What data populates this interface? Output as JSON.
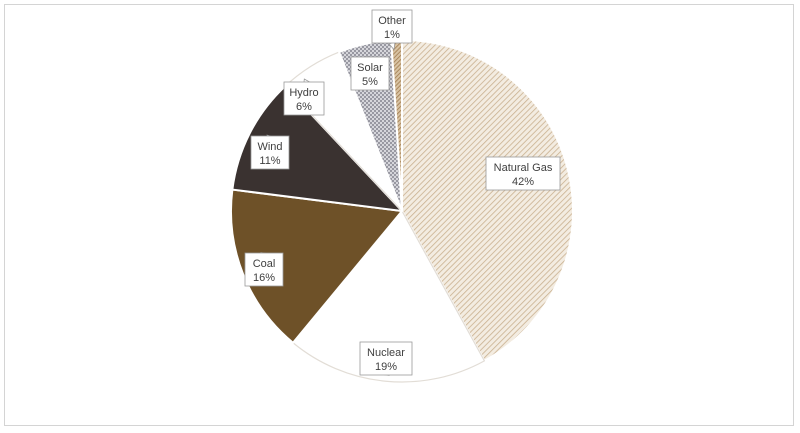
{
  "chart_data": {
    "type": "pie",
    "title": "",
    "slices": [
      {
        "label": "Natural Gas",
        "value": 42,
        "value_label": "42%",
        "color": "#c9b08f",
        "pattern": "diagonal-hatch"
      },
      {
        "label": "Nuclear",
        "value": 19,
        "value_label": "19%",
        "color": "#ffffff",
        "pattern": "solid"
      },
      {
        "label": "Coal",
        "value": 16,
        "value_label": "16%",
        "color": "#6e5128",
        "pattern": "solid"
      },
      {
        "label": "Wind",
        "value": 11,
        "value_label": "11%",
        "color": "#3a3230",
        "pattern": "solid"
      },
      {
        "label": "Hydro",
        "value": 6,
        "value_label": "6%",
        "color": "#ffffff",
        "pattern": "solid"
      },
      {
        "label": "Solar",
        "value": 5,
        "value_label": "5%",
        "color": "#8c8c96",
        "pattern": "crosshatch"
      },
      {
        "label": "Other",
        "value": 1,
        "value_label": "1%",
        "color": "#a07a4e",
        "pattern": "dense-diagonal"
      }
    ],
    "start_angle_deg": 0,
    "direction": "clockwise",
    "data_labels": "callout",
    "legend": "none"
  }
}
